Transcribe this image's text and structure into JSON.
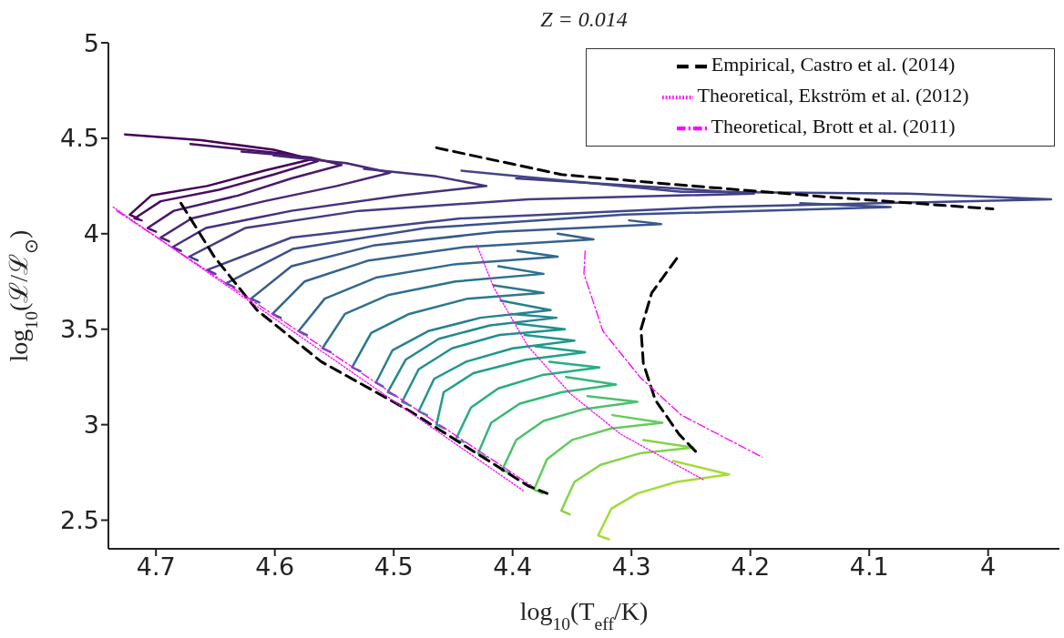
{
  "chart_data": {
    "type": "line",
    "title": "Z = 0.014",
    "xlabel": "log$_{10}$(T$_{eff}$/K)",
    "ylabel": "log$_{10}$(ℒ/ℒ$_{⊙}$)",
    "xlim": [
      4.74,
      3.94
    ],
    "ylim": [
      2.35,
      5
    ],
    "xticks": [
      4.7,
      4.6,
      4.5,
      4.4,
      4.3,
      4.2,
      4.1,
      4
    ],
    "yticks": [
      2.5,
      3,
      3.5,
      4,
      4.5,
      5
    ],
    "grid": false,
    "legend": "top right",
    "series": [
      {
        "color": "#440154",
        "x": [
          4.715,
          4.722,
          4.704,
          4.657,
          4.609,
          4.569,
          4.601,
          4.662,
          4.726
        ],
        "values": [
          4.08,
          4.1,
          4.2,
          4.25,
          4.33,
          4.39,
          4.44,
          4.49,
          4.52
        ]
      },
      {
        "color": "#470e61",
        "x": [
          4.712,
          4.718,
          4.696,
          4.647,
          4.601,
          4.564,
          4.593,
          4.671
        ],
        "values": [
          4.07,
          4.08,
          4.17,
          4.23,
          4.31,
          4.38,
          4.42,
          4.47
        ]
      },
      {
        "color": "#481a6c",
        "x": [
          4.7,
          4.707,
          4.685,
          4.631,
          4.586,
          4.544,
          4.57,
          4.628
        ],
        "values": [
          4.01,
          4.03,
          4.12,
          4.2,
          4.29,
          4.36,
          4.4,
          4.43
        ]
      },
      {
        "color": "#482576",
        "x": [
          4.689,
          4.696,
          4.67,
          4.609,
          4.548,
          4.503,
          4.54,
          4.601
        ],
        "values": [
          3.96,
          3.98,
          4.08,
          4.17,
          4.25,
          4.32,
          4.37,
          4.41
        ]
      },
      {
        "color": "#46307e",
        "x": [
          4.679,
          4.686,
          4.658,
          4.586,
          4.494,
          4.422,
          4.464,
          4.525
        ],
        "values": [
          3.91,
          3.93,
          4.03,
          4.12,
          4.2,
          4.25,
          4.3,
          4.34
        ]
      },
      {
        "color": "#443b84",
        "x": [
          4.665,
          4.672,
          4.625,
          4.529,
          4.387,
          4.197,
          4.296,
          4.397
        ],
        "values": [
          3.86,
          3.88,
          4.03,
          4.12,
          4.18,
          4.21,
          4.25,
          4.29
        ]
      },
      {
        "color": "#404688",
        "x": [
          4.65,
          4.657,
          4.586,
          4.444,
          4.231,
          3.947,
          4.067,
          4.258,
          4.443
        ],
        "values": [
          3.79,
          3.81,
          3.98,
          4.08,
          4.14,
          4.18,
          4.21,
          4.22,
          4.33
        ]
      },
      {
        "color": "#3c508b",
        "x": [
          4.634,
          4.641,
          4.585,
          4.473,
          4.306,
          4.082,
          4.158
        ],
        "values": [
          3.72,
          3.74,
          3.92,
          4.03,
          4.1,
          4.14,
          4.16
        ]
      },
      {
        "color": "#38598c",
        "x": [
          4.613,
          4.62,
          4.586,
          4.516,
          4.413,
          4.275,
          4.302
        ],
        "values": [
          3.64,
          3.66,
          3.83,
          3.94,
          4.01,
          4.05,
          4.07
        ]
      },
      {
        "color": "#34618d",
        "x": [
          4.595,
          4.602,
          4.575,
          4.521,
          4.44,
          4.332,
          4.362
        ],
        "values": [
          3.56,
          3.58,
          3.75,
          3.86,
          3.93,
          3.97,
          4.0
        ]
      },
      {
        "color": "#306a8e",
        "x": [
          4.573,
          4.58,
          4.558,
          4.515,
          4.449,
          4.362,
          4.396
        ],
        "values": [
          3.47,
          3.49,
          3.66,
          3.77,
          3.84,
          3.88,
          3.91
        ]
      },
      {
        "color": "#2d718e",
        "x": [
          4.553,
          4.56,
          4.541,
          4.504,
          4.448,
          4.374,
          4.412
        ],
        "values": [
          3.38,
          3.4,
          3.58,
          3.68,
          3.75,
          3.79,
          3.83
        ]
      },
      {
        "color": "#2a788e",
        "x": [
          4.528,
          4.535,
          4.519,
          4.487,
          4.438,
          4.374,
          4.416
        ],
        "values": [
          3.28,
          3.3,
          3.48,
          3.58,
          3.66,
          3.69,
          3.73
        ]
      },
      {
        "color": "#27808e",
        "x": [
          4.509,
          4.515,
          4.501,
          4.471,
          4.427,
          4.368,
          4.41
        ],
        "values": [
          3.2,
          3.22,
          3.39,
          3.49,
          3.56,
          3.6,
          3.65
        ]
      },
      {
        "color": "#24878e",
        "x": [
          4.498,
          4.505,
          4.49,
          4.462,
          4.419,
          4.363,
          4.401
        ],
        "values": [
          3.15,
          3.17,
          3.34,
          3.45,
          3.52,
          3.56,
          3.58
        ]
      },
      {
        "color": "#21908d",
        "x": [
          4.486,
          4.493,
          4.479,
          4.451,
          4.411,
          4.356,
          4.397
        ],
        "values": [
          3.1,
          3.12,
          3.29,
          3.4,
          3.47,
          3.5,
          3.53
        ]
      },
      {
        "color": "#1f978b",
        "x": [
          4.472,
          4.479,
          4.466,
          4.439,
          4.4,
          4.348,
          4.39
        ],
        "values": [
          3.05,
          3.07,
          3.24,
          3.33,
          3.4,
          3.44,
          3.47
        ]
      },
      {
        "color": "#1fa088",
        "x": [
          4.457,
          4.464,
          4.458,
          4.433,
          4.389,
          4.339,
          4.381
        ],
        "values": [
          2.98,
          3.0,
          3.17,
          3.27,
          3.34,
          3.38,
          3.41
        ]
      },
      {
        "color": "#27ad81",
        "x": [
          4.441,
          4.448,
          4.435,
          4.412,
          4.375,
          4.327,
          4.369
        ],
        "values": [
          2.91,
          2.92,
          3.09,
          3.19,
          3.26,
          3.3,
          3.33
        ]
      },
      {
        "color": "#35b779",
        "x": [
          4.422,
          4.429,
          4.418,
          4.394,
          4.359,
          4.313,
          4.355
        ],
        "values": [
          2.83,
          2.85,
          3.01,
          3.11,
          3.17,
          3.21,
          3.25
        ]
      },
      {
        "color": "#4ac16d",
        "x": [
          4.402,
          4.409,
          4.397,
          4.374,
          4.341,
          4.295,
          4.337
        ],
        "values": [
          2.75,
          2.76,
          2.92,
          3.02,
          3.08,
          3.12,
          3.15
        ]
      },
      {
        "color": "#66cb5d",
        "x": [
          4.375,
          4.382,
          4.371,
          4.35,
          4.317,
          4.274,
          4.316
        ],
        "values": [
          2.64,
          2.66,
          2.82,
          2.92,
          2.98,
          3.01,
          3.05
        ]
      },
      {
        "color": "#84d44b",
        "x": [
          4.352,
          4.359,
          4.348,
          4.326,
          4.293,
          4.248,
          4.29
        ],
        "values": [
          2.53,
          2.55,
          2.7,
          2.79,
          2.85,
          2.88,
          2.92
        ]
      },
      {
        "color": "#a5db36",
        "x": [
          4.319,
          4.328,
          4.317,
          4.295,
          4.262,
          4.218,
          4.265
        ],
        "values": [
          2.4,
          2.42,
          2.56,
          2.64,
          2.7,
          2.74,
          2.81
        ]
      },
      {
        "name": "Empirical, Castro et al. (2014)",
        "color": "#000000",
        "line_style": "dashed",
        "x": [
          4.679,
          4.651,
          4.615,
          4.561,
          4.486,
          4.387,
          4.371,
          null,
          4.464,
          4.359,
          4.268,
          4.13,
          3.996,
          null,
          4.262,
          4.283,
          4.292,
          4.29,
          4.28,
          4.26,
          4.246
        ],
        "values": [
          4.16,
          3.88,
          3.6,
          3.33,
          3.07,
          2.68,
          2.64,
          null,
          4.45,
          4.31,
          4.26,
          4.19,
          4.13,
          null,
          3.87,
          3.69,
          3.5,
          3.32,
          3.13,
          2.95,
          2.86
        ]
      },
      {
        "name": "Theoretical, Ekström et al. (2012)",
        "color": "#ff00ff",
        "line_style": "dotted",
        "x": [
          4.736,
          4.39,
          null,
          4.43,
          4.416,
          4.387,
          4.351,
          4.309,
          4.239
        ],
        "values": [
          4.14,
          2.65,
          null,
          3.94,
          3.72,
          3.41,
          3.16,
          2.95,
          2.71
        ]
      },
      {
        "name": "Theoretical, Brott et al. (2011)",
        "color": "#ff00ff",
        "line_style": "dashdot",
        "x": [
          4.733,
          4.384,
          null,
          4.339,
          4.34,
          4.324,
          4.293,
          4.258,
          4.19
        ],
        "values": [
          4.12,
          2.68,
          null,
          3.91,
          3.79,
          3.49,
          3.25,
          3.05,
          2.83
        ]
      }
    ]
  }
}
